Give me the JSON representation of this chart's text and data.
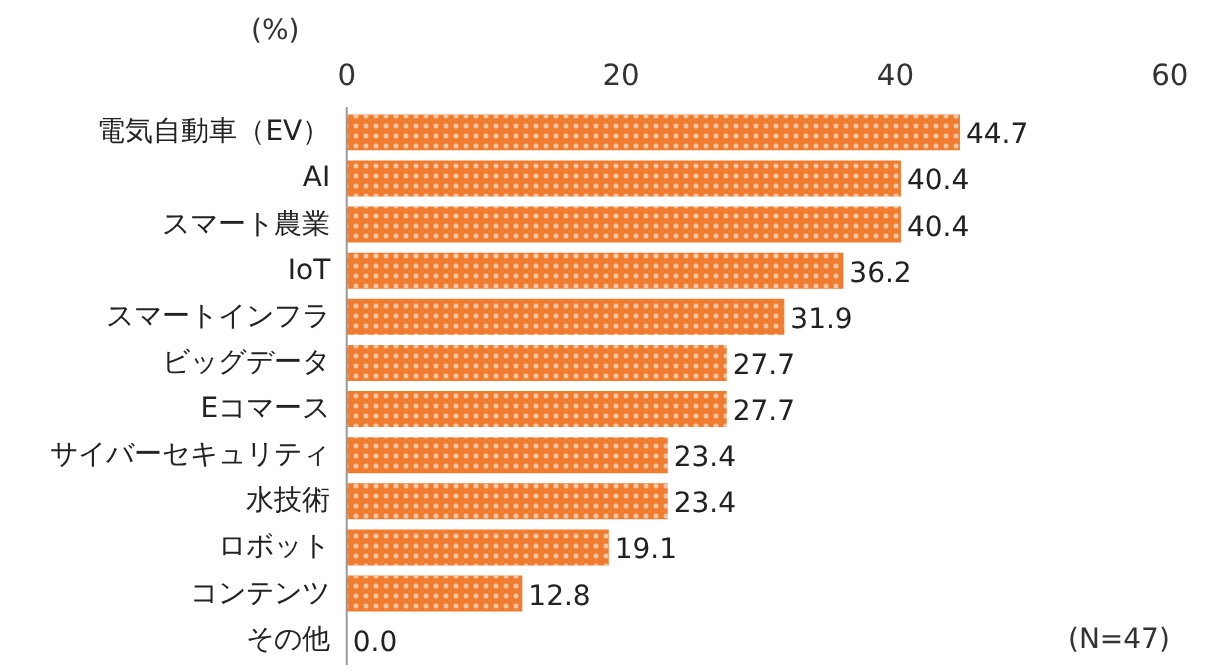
{
  "chart_data": {
    "type": "bar",
    "orientation": "horizontal",
    "xlabel": "(%)",
    "categories": [
      "電気自動車（EV）",
      "AI",
      "スマート農業",
      "IoT",
      "スマートインフラ",
      "ビッグデータ",
      "Eコマース",
      "サイバーセキュリティ",
      "水技術",
      "ロボット",
      "コンテンツ",
      "その他"
    ],
    "values": [
      44.7,
      40.4,
      40.4,
      36.2,
      31.9,
      27.7,
      27.7,
      23.4,
      23.4,
      19.1,
      12.8,
      0.0
    ],
    "color": "#f07d2f",
    "value_labels": [
      "44.7",
      "40.4",
      "40.4",
      "36.2",
      "31.9",
      "27.7",
      "27.7",
      "23.4",
      "23.4",
      "19.1",
      "12.8",
      "0.0"
    ],
    "xlim": [
      0,
      60
    ],
    "xticks": [
      0,
      20,
      40,
      60
    ],
    "grid": false,
    "annotations": [
      "(N=47)"
    ]
  }
}
